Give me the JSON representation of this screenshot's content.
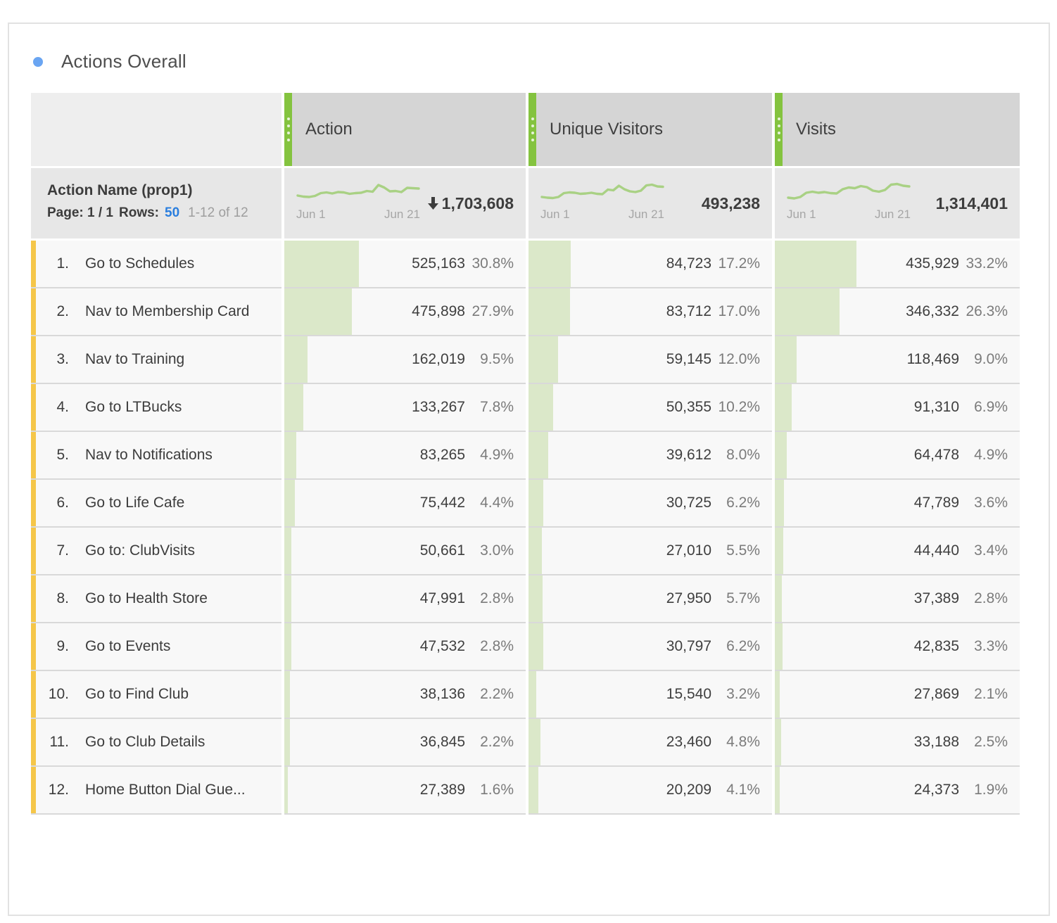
{
  "title": "Actions Overall",
  "colors": {
    "accent_green": "#84c33f",
    "bar_green": "#dbe8c9",
    "spark_green": "#a9d184",
    "row_stripe_yellow": "#f5c649",
    "link_blue": "#2a7ede",
    "title_dot_blue": "#6aa5f2"
  },
  "dimension": {
    "name": "Action Name (prop1)",
    "page_label": "Page: 1 / 1",
    "rows_label": "Rows:",
    "rows_value": "50",
    "range_text": "1-12 of 12"
  },
  "columns": [
    {
      "key": "action",
      "label": "Action",
      "total": "1,703,608",
      "sorted_desc": true,
      "range_start": "Jun 1",
      "range_end": "Jun 21",
      "spark": [
        21,
        22.5,
        23,
        21.5,
        17.5,
        16.5,
        18,
        16,
        16.5,
        18.5,
        17.5,
        17,
        14.5,
        15.5,
        6,
        9.5,
        15,
        14.5,
        16,
        10,
        10.5,
        11
      ]
    },
    {
      "key": "unique_visitors",
      "label": "Unique Visitors",
      "total": "493,238",
      "sorted_desc": false,
      "range_start": "Jun 1",
      "range_end": "Jun 21",
      "spark": [
        23,
        24,
        24.5,
        23,
        17.5,
        16.5,
        17,
        18.5,
        18,
        17,
        18.5,
        19,
        12.5,
        13.5,
        7,
        12,
        15,
        16,
        14,
        6.5,
        5.5,
        8,
        8.5
      ]
    },
    {
      "key": "visits",
      "label": "Visits",
      "total": "1,314,401",
      "sorted_desc": false,
      "range_start": "Jun 1",
      "range_end": "Jun 21",
      "spark": [
        24,
        25,
        23,
        17,
        15.5,
        17,
        16,
        17.5,
        18,
        12,
        9.5,
        10.5,
        7.5,
        9,
        14,
        15.5,
        13,
        5.5,
        4.5,
        7,
        8
      ]
    }
  ],
  "rows": [
    {
      "num": "1.",
      "name": "Go to Schedules",
      "action": {
        "value": "525,163",
        "pct": "30.8%",
        "pct_num": 30.8
      },
      "unique_visitors": {
        "value": "84,723",
        "pct": "17.2%",
        "pct_num": 17.2
      },
      "visits": {
        "value": "435,929",
        "pct": "33.2%",
        "pct_num": 33.2
      }
    },
    {
      "num": "2.",
      "name": "Nav to Membership Card",
      "action": {
        "value": "475,898",
        "pct": "27.9%",
        "pct_num": 27.9
      },
      "unique_visitors": {
        "value": "83,712",
        "pct": "17.0%",
        "pct_num": 17.0
      },
      "visits": {
        "value": "346,332",
        "pct": "26.3%",
        "pct_num": 26.3
      }
    },
    {
      "num": "3.",
      "name": "Nav to Training",
      "action": {
        "value": "162,019",
        "pct": "9.5%",
        "pct_num": 9.5
      },
      "unique_visitors": {
        "value": "59,145",
        "pct": "12.0%",
        "pct_num": 12.0
      },
      "visits": {
        "value": "118,469",
        "pct": "9.0%",
        "pct_num": 9.0
      }
    },
    {
      "num": "4.",
      "name": "Go to LTBucks",
      "action": {
        "value": "133,267",
        "pct": "7.8%",
        "pct_num": 7.8
      },
      "unique_visitors": {
        "value": "50,355",
        "pct": "10.2%",
        "pct_num": 10.2
      },
      "visits": {
        "value": "91,310",
        "pct": "6.9%",
        "pct_num": 6.9
      }
    },
    {
      "num": "5.",
      "name": "Nav to Notifications",
      "action": {
        "value": "83,265",
        "pct": "4.9%",
        "pct_num": 4.9
      },
      "unique_visitors": {
        "value": "39,612",
        "pct": "8.0%",
        "pct_num": 8.0
      },
      "visits": {
        "value": "64,478",
        "pct": "4.9%",
        "pct_num": 4.9
      }
    },
    {
      "num": "6.",
      "name": "Go to Life Cafe",
      "action": {
        "value": "75,442",
        "pct": "4.4%",
        "pct_num": 4.4
      },
      "unique_visitors": {
        "value": "30,725",
        "pct": "6.2%",
        "pct_num": 6.2
      },
      "visits": {
        "value": "47,789",
        "pct": "3.6%",
        "pct_num": 3.6
      }
    },
    {
      "num": "7.",
      "name": "Go to: ClubVisits",
      "action": {
        "value": "50,661",
        "pct": "3.0%",
        "pct_num": 3.0
      },
      "unique_visitors": {
        "value": "27,010",
        "pct": "5.5%",
        "pct_num": 5.5
      },
      "visits": {
        "value": "44,440",
        "pct": "3.4%",
        "pct_num": 3.4
      }
    },
    {
      "num": "8.",
      "name": "Go to Health Store",
      "action": {
        "value": "47,991",
        "pct": "2.8%",
        "pct_num": 2.8
      },
      "unique_visitors": {
        "value": "27,950",
        "pct": "5.7%",
        "pct_num": 5.7
      },
      "visits": {
        "value": "37,389",
        "pct": "2.8%",
        "pct_num": 2.8
      }
    },
    {
      "num": "9.",
      "name": "Go to Events",
      "action": {
        "value": "47,532",
        "pct": "2.8%",
        "pct_num": 2.8
      },
      "unique_visitors": {
        "value": "30,797",
        "pct": "6.2%",
        "pct_num": 6.2
      },
      "visits": {
        "value": "42,835",
        "pct": "3.3%",
        "pct_num": 3.3
      }
    },
    {
      "num": "10.",
      "name": "Go to Find Club",
      "action": {
        "value": "38,136",
        "pct": "2.2%",
        "pct_num": 2.2
      },
      "unique_visitors": {
        "value": "15,540",
        "pct": "3.2%",
        "pct_num": 3.2
      },
      "visits": {
        "value": "27,869",
        "pct": "2.1%",
        "pct_num": 2.1
      }
    },
    {
      "num": "11.",
      "name": "Go to Club Details",
      "action": {
        "value": "36,845",
        "pct": "2.2%",
        "pct_num": 2.2
      },
      "unique_visitors": {
        "value": "23,460",
        "pct": "4.8%",
        "pct_num": 4.8
      },
      "visits": {
        "value": "33,188",
        "pct": "2.5%",
        "pct_num": 2.5
      }
    },
    {
      "num": "12.",
      "name": "Home Button Dial Gue...",
      "action": {
        "value": "27,389",
        "pct": "1.6%",
        "pct_num": 1.6
      },
      "unique_visitors": {
        "value": "20,209",
        "pct": "4.1%",
        "pct_num": 4.1
      },
      "visits": {
        "value": "24,373",
        "pct": "1.9%",
        "pct_num": 1.9
      }
    }
  ]
}
